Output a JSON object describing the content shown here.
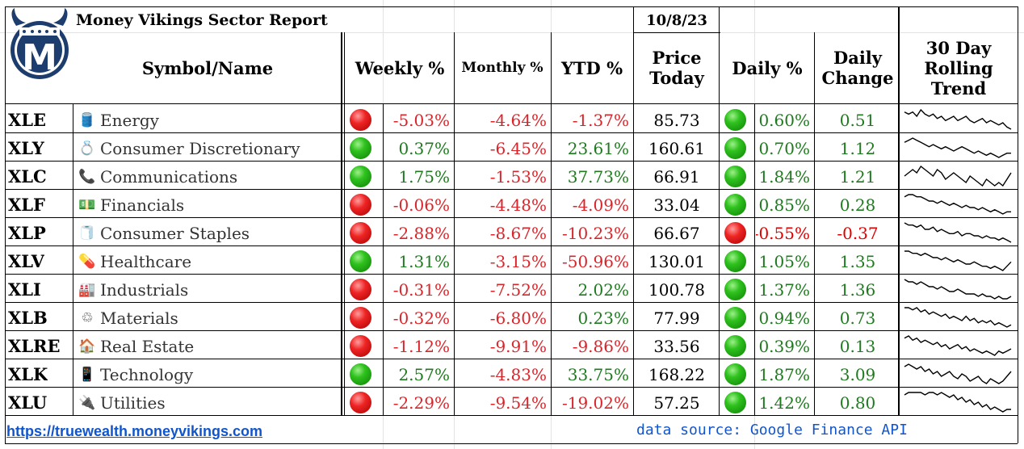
{
  "header": {
    "title": "Money Vikings Sector Report",
    "date": "10/8/23",
    "logo_letter": "M",
    "columns": {
      "symbol_name": "Symbol/Name",
      "weekly": "Weekly %",
      "monthly": "Monthly %",
      "ytd": "YTD %",
      "price_line1": "Price",
      "price_line2": "Today",
      "daily_pct": "Daily %",
      "daily_change_line1": "Daily",
      "daily_change_line2": "Change",
      "trend_line1": "30 Day",
      "trend_line2": "Rolling",
      "trend_line3": "Trend"
    }
  },
  "colors": {
    "positive": "#1f7a1f",
    "negative": "#d9252a",
    "link": "#1155cc"
  },
  "rows": [
    {
      "symbol": "XLE",
      "icon": "oil-barrel-icon",
      "emoji": "🛢️",
      "name": "Energy",
      "weekly_dot": "red",
      "weekly": "-5.03%",
      "monthly": "-4.64%",
      "ytd": "-1.37%",
      "price": "85.73",
      "daily_dot": "green",
      "daily_pct": "0.60%",
      "daily_change": "0.51",
      "trend": [
        8,
        7,
        8,
        6,
        9,
        7,
        6,
        7,
        5,
        6,
        4,
        5,
        6,
        4,
        5,
        6,
        4,
        3,
        4,
        5,
        3,
        4,
        3,
        2,
        3,
        1,
        0
      ]
    },
    {
      "symbol": "XLY",
      "icon": "ring-icon",
      "emoji": "💍",
      "name": "Consumer Discretionary",
      "weekly_dot": "green",
      "weekly": "0.37%",
      "monthly": "-6.45%",
      "ytd": "23.61%",
      "price": "160.61",
      "daily_dot": "green",
      "daily_pct": "0.70%",
      "daily_change": "1.12",
      "trend": [
        7,
        8,
        9,
        8,
        7,
        6,
        5,
        6,
        5,
        4,
        5,
        4,
        3,
        4,
        5,
        4,
        3,
        2,
        3,
        2,
        1,
        2,
        1,
        0,
        1,
        2,
        2
      ]
    },
    {
      "symbol": "XLC",
      "icon": "telephone-icon",
      "emoji": "📞",
      "name": "Communications",
      "weekly_dot": "green",
      "weekly": "1.75%",
      "monthly": "-1.53%",
      "ytd": "37.73%",
      "price": "66.91",
      "daily_dot": "green",
      "daily_pct": "1.84%",
      "daily_change": "1.21",
      "trend": [
        5,
        6,
        7,
        6,
        8,
        7,
        6,
        5,
        7,
        6,
        4,
        5,
        6,
        5,
        4,
        3,
        5,
        4,
        3,
        2,
        4,
        3,
        2,
        3,
        2,
        4,
        6
      ]
    },
    {
      "symbol": "XLF",
      "icon": "money-icon",
      "emoji": "💵",
      "name": "Financials",
      "weekly_dot": "red",
      "weekly": "-0.06%",
      "monthly": "-4.48%",
      "ytd": "-4.09%",
      "price": "33.04",
      "daily_dot": "green",
      "daily_pct": "0.85%",
      "daily_change": "0.28",
      "trend": [
        8,
        9,
        9,
        8,
        8,
        7,
        6,
        6,
        5,
        6,
        5,
        4,
        5,
        4,
        3,
        4,
        3,
        3,
        2,
        3,
        2,
        1,
        2,
        1,
        0,
        1,
        1
      ]
    },
    {
      "symbol": "XLP",
      "icon": "paper-roll-icon",
      "emoji": "🧻",
      "name": "Consumer Staples",
      "weekly_dot": "red",
      "weekly": "-2.88%",
      "monthly": "-8.67%",
      "ytd": "-10.23%",
      "price": "66.67",
      "daily_dot": "red",
      "daily_pct": "-0.55%",
      "daily_change": "-0.37",
      "trend": [
        9,
        8,
        8,
        7,
        8,
        6,
        6,
        7,
        5,
        6,
        5,
        4,
        4,
        5,
        3,
        4,
        4,
        3,
        3,
        2,
        3,
        2,
        2,
        1,
        2,
        1,
        0
      ]
    },
    {
      "symbol": "XLV",
      "icon": "pill-icon",
      "emoji": "💊",
      "name": "Healthcare",
      "weekly_dot": "green",
      "weekly": "1.31%",
      "monthly": "-3.15%",
      "ytd": "-50.96%",
      "price": "130.01",
      "daily_dot": "green",
      "daily_pct": "1.05%",
      "daily_change": "1.35",
      "trend": [
        9,
        9,
        8,
        8,
        7,
        8,
        7,
        6,
        6,
        5,
        6,
        5,
        4,
        5,
        4,
        3,
        3,
        4,
        3,
        2,
        2,
        1,
        2,
        1,
        0,
        2,
        4
      ]
    },
    {
      "symbol": "XLI",
      "icon": "factory-icon",
      "emoji": "🏭",
      "name": "Industrials",
      "weekly_dot": "red",
      "weekly": "-0.31%",
      "monthly": "-7.52%",
      "ytd": "2.02%",
      "price": "100.78",
      "daily_dot": "green",
      "daily_pct": "1.37%",
      "daily_change": "1.36",
      "trend": [
        9,
        8,
        8,
        7,
        8,
        7,
        6,
        6,
        5,
        6,
        5,
        4,
        4,
        5,
        4,
        3,
        3,
        3,
        2,
        3,
        2,
        2,
        1,
        2,
        1,
        1,
        2
      ]
    },
    {
      "symbol": "XLB",
      "icon": "recycle-icon",
      "emoji": "♲",
      "name": "Materials",
      "weekly_dot": "red",
      "weekly": "-0.32%",
      "monthly": "-6.80%",
      "ytd": "0.23%",
      "price": "77.99",
      "daily_dot": "green",
      "daily_pct": "0.94%",
      "daily_change": "0.73",
      "trend": [
        9,
        9,
        8,
        9,
        7,
        8,
        6,
        7,
        6,
        5,
        6,
        4,
        5,
        4,
        3,
        5,
        3,
        4,
        2,
        3,
        2,
        3,
        1,
        2,
        1,
        0,
        1
      ]
    },
    {
      "symbol": "XLRE",
      "icon": "house-icon",
      "emoji": "🏠",
      "name": "Real Estate",
      "weekly_dot": "red",
      "weekly": "-1.12%",
      "monthly": "-9.91%",
      "ytd": "-9.86%",
      "price": "33.56",
      "daily_dot": "green",
      "daily_pct": "0.39%",
      "daily_change": "0.13",
      "trend": [
        8,
        9,
        7,
        8,
        6,
        7,
        6,
        5,
        6,
        4,
        5,
        3,
        4,
        5,
        3,
        4,
        2,
        3,
        2,
        1,
        2,
        1,
        0,
        2,
        1,
        2,
        3
      ]
    },
    {
      "symbol": "XLK",
      "icon": "phone-icon",
      "emoji": "📱",
      "name": "Technology",
      "weekly_dot": "green",
      "weekly": "2.57%",
      "monthly": "-4.83%",
      "ytd": "33.75%",
      "price": "168.22",
      "daily_dot": "green",
      "daily_pct": "1.87%",
      "daily_change": "3.09",
      "trend": [
        8,
        9,
        8,
        7,
        8,
        6,
        7,
        5,
        6,
        4,
        5,
        6,
        4,
        3,
        5,
        4,
        2,
        3,
        4,
        2,
        1,
        3,
        2,
        1,
        2,
        4,
        6
      ]
    },
    {
      "symbol": "XLU",
      "icon": "plug-icon",
      "emoji": "🔌",
      "name": "Utilities",
      "weekly_dot": "red",
      "weekly": "-2.29%",
      "monthly": "-9.54%",
      "ytd": "-19.02%",
      "price": "57.25",
      "daily_dot": "green",
      "daily_pct": "1.42%",
      "daily_change": "0.80",
      "trend": [
        7,
        8,
        8,
        8,
        8,
        7,
        8,
        8,
        7,
        8,
        7,
        6,
        7,
        5,
        6,
        4,
        5,
        3,
        4,
        2,
        3,
        1,
        2,
        1,
        0,
        1,
        1
      ]
    }
  ],
  "footer": {
    "link_text": "https://truewealth.moneyvikings.com",
    "source_text": "data source: Google Finance API"
  }
}
